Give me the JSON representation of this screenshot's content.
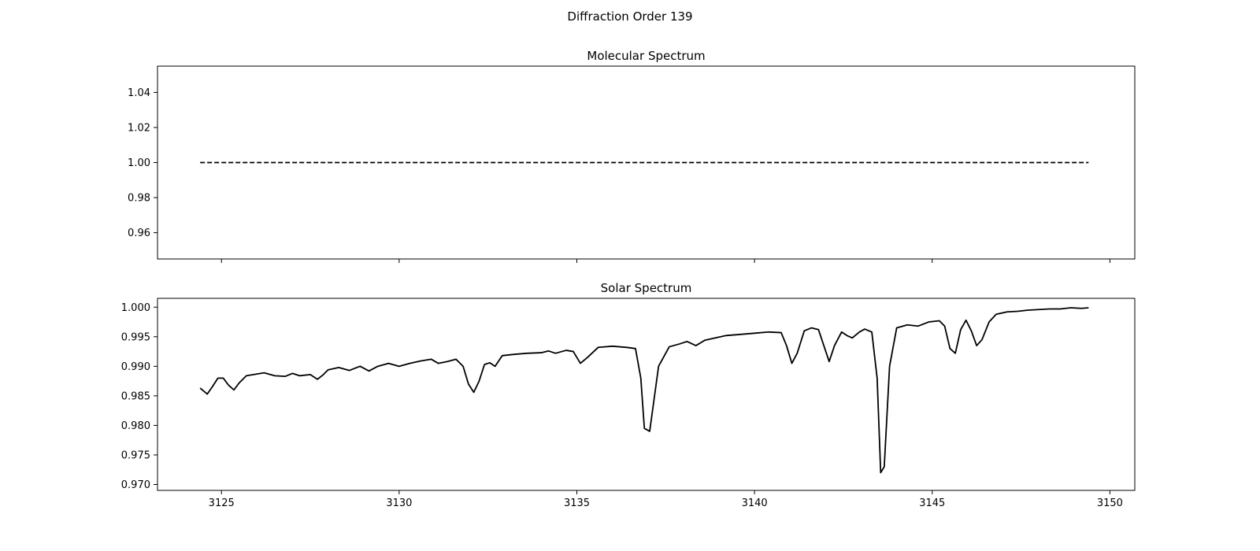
{
  "figure": {
    "suptitle": "Diffraction Order 139"
  },
  "chart_data": [
    {
      "type": "line",
      "title": "Molecular Spectrum",
      "xlabel": "",
      "ylabel": "",
      "xlim": [
        3123.2,
        3150.7
      ],
      "ylim": [
        0.945,
        1.055
      ],
      "xticks": [
        3125,
        3130,
        3135,
        3140,
        3145,
        3150
      ],
      "xticklabels": [],
      "yticks": [
        0.96,
        0.98,
        1.0,
        1.02,
        1.04
      ],
      "yticklabels": [
        "0.96",
        "0.98",
        "1.00",
        "1.02",
        "1.04"
      ],
      "grid": false,
      "series": [
        {
          "style": "dashed",
          "color": "#000000",
          "x": [
            3124.4,
            3149.4
          ],
          "y": [
            1.0,
            1.0
          ]
        }
      ]
    },
    {
      "type": "line",
      "title": "Solar Spectrum",
      "xlabel": "",
      "ylabel": "",
      "xlim": [
        3123.2,
        3150.7
      ],
      "ylim": [
        0.969,
        1.0015
      ],
      "xticks": [
        3125,
        3130,
        3135,
        3140,
        3145,
        3150
      ],
      "xticklabels": [
        "3125",
        "3130",
        "3135",
        "3140",
        "3145",
        "3150"
      ],
      "yticks": [
        0.97,
        0.975,
        0.98,
        0.985,
        0.99,
        0.995,
        1.0
      ],
      "yticklabels": [
        "0.970",
        "0.975",
        "0.980",
        "0.985",
        "0.990",
        "0.995",
        "1.000"
      ],
      "grid": false,
      "series": [
        {
          "style": "solid",
          "color": "#000000",
          "x": [
            3124.4,
            3124.6,
            3124.75,
            3124.9,
            3125.05,
            3125.2,
            3125.35,
            3125.5,
            3125.7,
            3125.9,
            3126.2,
            3126.5,
            3126.8,
            3127.0,
            3127.2,
            3127.5,
            3127.7,
            3127.85,
            3128.0,
            3128.3,
            3128.6,
            3128.9,
            3129.15,
            3129.4,
            3129.7,
            3130.0,
            3130.3,
            3130.6,
            3130.9,
            3131.1,
            3131.35,
            3131.6,
            3131.8,
            3131.95,
            3132.1,
            3132.25,
            3132.4,
            3132.55,
            3132.7,
            3132.9,
            3133.2,
            3133.6,
            3134.0,
            3134.2,
            3134.4,
            3134.7,
            3134.9,
            3135.1,
            3135.3,
            3135.6,
            3136.0,
            3136.4,
            3136.65,
            3136.8,
            3136.9,
            3137.05,
            3137.3,
            3137.6,
            3137.9,
            3138.1,
            3138.35,
            3138.6,
            3138.9,
            3139.2,
            3139.6,
            3140.0,
            3140.4,
            3140.75,
            3140.9,
            3141.05,
            3141.2,
            3141.4,
            3141.6,
            3141.8,
            3141.95,
            3142.1,
            3142.25,
            3142.45,
            3142.6,
            3142.75,
            3142.95,
            3143.1,
            3143.3,
            3143.45,
            3143.55,
            3143.65,
            3143.8,
            3144.0,
            3144.3,
            3144.6,
            3144.9,
            3145.2,
            3145.35,
            3145.5,
            3145.65,
            3145.8,
            3145.95,
            3146.1,
            3146.25,
            3146.4,
            3146.6,
            3146.8,
            3147.1,
            3147.4,
            3147.7,
            3148.0,
            3148.3,
            3148.6,
            3148.9,
            3149.2,
            3149.4
          ],
          "y": [
            0.9863,
            0.9853,
            0.9866,
            0.988,
            0.988,
            0.9868,
            0.986,
            0.9872,
            0.9884,
            0.9886,
            0.9889,
            0.9884,
            0.9883,
            0.9888,
            0.9884,
            0.9886,
            0.9878,
            0.9885,
            0.9894,
            0.9898,
            0.9893,
            0.99,
            0.9892,
            0.99,
            0.9905,
            0.99,
            0.9905,
            0.9909,
            0.9912,
            0.9905,
            0.9908,
            0.9912,
            0.99,
            0.987,
            0.9856,
            0.9875,
            0.9903,
            0.9906,
            0.99,
            0.9918,
            0.992,
            0.9922,
            0.9923,
            0.9926,
            0.9922,
            0.9927,
            0.9925,
            0.9905,
            0.9915,
            0.9932,
            0.9934,
            0.9932,
            0.993,
            0.988,
            0.9795,
            0.979,
            0.99,
            0.9933,
            0.9938,
            0.9942,
            0.9935,
            0.9944,
            0.9948,
            0.9952,
            0.9954,
            0.9956,
            0.9958,
            0.9957,
            0.9935,
            0.9905,
            0.9922,
            0.996,
            0.9965,
            0.9962,
            0.9935,
            0.9908,
            0.9935,
            0.9958,
            0.9952,
            0.9948,
            0.9958,
            0.9963,
            0.9958,
            0.988,
            0.972,
            0.973,
            0.99,
            0.9965,
            0.997,
            0.9968,
            0.9975,
            0.9977,
            0.9968,
            0.993,
            0.9922,
            0.9962,
            0.9978,
            0.996,
            0.9935,
            0.9945,
            0.9975,
            0.9988,
            0.9992,
            0.9993,
            0.9995,
            0.9996,
            0.9997,
            0.9997,
            0.9999,
            0.9998,
            0.9999
          ]
        }
      ]
    }
  ]
}
